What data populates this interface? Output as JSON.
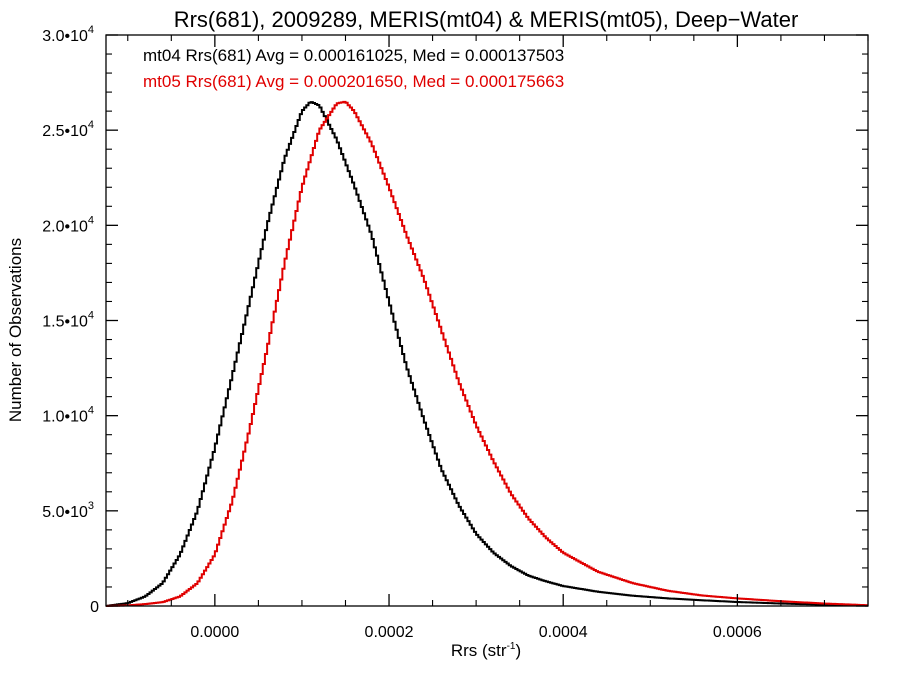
{
  "chart_data": {
    "type": "line",
    "title": "Rrs(681), 2009289, MERIS(mt04) & MERIS(mt05), Deep−Water",
    "xlabel": "Rrs (str",
    "xlabel_sup": "-1",
    "xlabel_end": ")",
    "ylabel": "Number of Observations",
    "xlim": [
      -0.000125,
      0.00075
    ],
    "ylim": [
      0,
      30000
    ],
    "grid": false,
    "legend_position": "top-left",
    "x_ticks": [
      {
        "value": 0.0,
        "label": "0.0000"
      },
      {
        "value": 0.0002,
        "label": "0.0002"
      },
      {
        "value": 0.0004,
        "label": "0.0004"
      },
      {
        "value": 0.0006,
        "label": "0.0006"
      }
    ],
    "y_ticks": [
      {
        "value": 0,
        "mant": "0",
        "exp": ""
      },
      {
        "value": 5000,
        "mant": "5.0•10",
        "exp": "3"
      },
      {
        "value": 10000,
        "mant": "1.0•10",
        "exp": "4"
      },
      {
        "value": 15000,
        "mant": "1.5•10",
        "exp": "4"
      },
      {
        "value": 20000,
        "mant": "2.0•10",
        "exp": "4"
      },
      {
        "value": 25000,
        "mant": "2.5•10",
        "exp": "4"
      },
      {
        "value": 30000,
        "mant": "3.0•10",
        "exp": "4"
      }
    ],
    "series": [
      {
        "name": "mt04 Rrs(681)",
        "color": "#000000",
        "legend_text": "mt04 Rrs(681) Avg = 0.000161025, Med = 0.000137503",
        "x": [
          -0.000125,
          -0.0001,
          -8e-05,
          -6e-05,
          -4e-05,
          -2e-05,
          0.0,
          2e-05,
          4e-05,
          6e-05,
          8e-05,
          0.0001,
          0.00011,
          0.00012,
          0.00014,
          0.00016,
          0.00018,
          0.0002,
          0.00022,
          0.00024,
          0.00026,
          0.00028,
          0.0003,
          0.00032,
          0.00034,
          0.00036,
          0.00038,
          0.0004,
          0.00044,
          0.00048,
          0.00052,
          0.00056,
          0.0006,
          0.00065,
          0.0007,
          0.00075
        ],
        "y": [
          0,
          150,
          500,
          1200,
          2700,
          5000,
          8300,
          12100,
          16000,
          20000,
          23500,
          26000,
          26500,
          26300,
          24500,
          22100,
          19500,
          16000,
          12600,
          9800,
          7200,
          5300,
          3800,
          2800,
          2100,
          1600,
          1300,
          1050,
          750,
          540,
          400,
          300,
          210,
          130,
          70,
          20
        ]
      },
      {
        "name": "mt05 Rrs(681)",
        "color": "#e00000",
        "legend_text": "mt05 Rrs(681) Avg = 0.000201650, Med = 0.000175663",
        "x": [
          -0.000125,
          -0.0001,
          -8e-05,
          -6e-05,
          -4e-05,
          -2e-05,
          0.0,
          2e-05,
          4e-05,
          6e-05,
          8e-05,
          0.0001,
          0.00012,
          0.00014,
          0.00015,
          0.00016,
          0.00018,
          0.0002,
          0.00022,
          0.00024,
          0.00026,
          0.00028,
          0.0003,
          0.00032,
          0.00034,
          0.00036,
          0.00038,
          0.0004,
          0.00044,
          0.00048,
          0.00052,
          0.00056,
          0.0006,
          0.00065,
          0.0007,
          0.00075
        ],
        "y": [
          0,
          30,
          100,
          200,
          500,
          1200,
          2700,
          5500,
          9300,
          13500,
          18000,
          22000,
          25000,
          26400,
          26500,
          26000,
          24300,
          22000,
          19500,
          17200,
          14500,
          11800,
          9500,
          7600,
          5900,
          4600,
          3600,
          2800,
          1800,
          1200,
          800,
          550,
          400,
          250,
          130,
          40
        ]
      }
    ]
  }
}
